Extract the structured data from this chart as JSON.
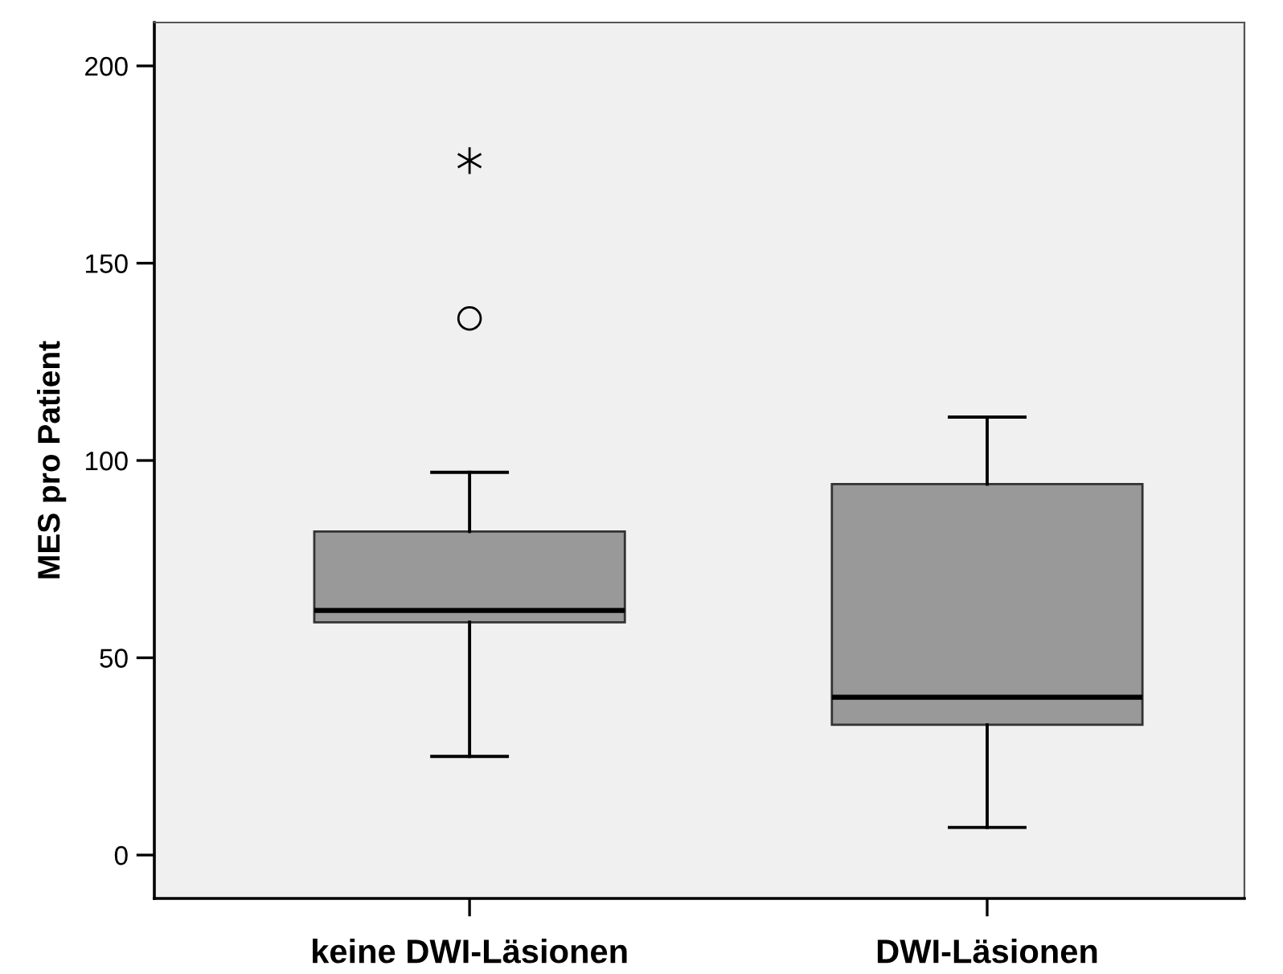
{
  "chart_data": {
    "type": "box",
    "ylabel": "MES pro Patient",
    "categories": [
      "keine DWI-Läsionen",
      "DWI-Läsionen"
    ],
    "boxes": [
      {
        "low": 25,
        "q1": 59,
        "median": 62,
        "q3": 82,
        "high": 97,
        "outliers": [
          136,
          176
        ]
      },
      {
        "low": 7,
        "q1": 33,
        "median": 40,
        "q3": 94,
        "high": 111
      }
    ],
    "colors": [
      "#999999",
      "#999999"
    ],
    "ylim": [
      -11,
      211
    ],
    "yticks": [
      0,
      50,
      100,
      150,
      200
    ],
    "grid": false
  }
}
